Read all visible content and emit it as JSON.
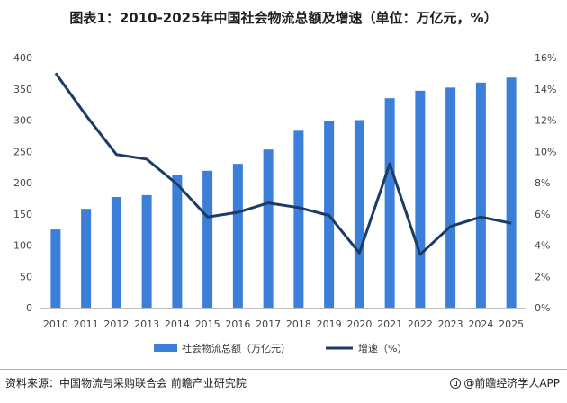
{
  "chart_data": {
    "type": "bar",
    "title": "图表1：2010-2025年中国社会物流总额及增速（单位：万亿元，%）",
    "categories": [
      "2010",
      "2011",
      "2012",
      "2013",
      "2014",
      "2015",
      "2016",
      "2017",
      "2018",
      "2019",
      "2020",
      "2021",
      "2022",
      "2023",
      "2024",
      "2025"
    ],
    "series": [
      {
        "name": "社会物流总额（万亿元）",
        "kind": "bar",
        "axis": "left",
        "color": "#3b7fd9",
        "values": [
          125,
          158,
          177,
          180,
          213,
          219,
          230,
          253,
          283,
          298,
          300,
          335,
          347,
          352,
          360,
          368
        ]
      },
      {
        "name": "增速（%）",
        "kind": "line",
        "axis": "right",
        "color": "#1d3b67",
        "values": [
          15.0,
          12.3,
          9.8,
          9.5,
          7.9,
          5.8,
          6.1,
          6.7,
          6.4,
          5.9,
          3.5,
          9.2,
          3.4,
          5.2,
          5.8,
          5.4
        ]
      }
    ],
    "y_left": {
      "min": 0,
      "max": 400,
      "ticks": [
        0,
        50,
        100,
        150,
        200,
        250,
        300,
        350,
        400
      ]
    },
    "y_right": {
      "min": 0,
      "max": 16,
      "ticks": [
        "0%",
        "2%",
        "4%",
        "6%",
        "8%",
        "10%",
        "12%",
        "14%",
        "16%"
      ]
    },
    "grid": false,
    "legend_position": "bottom"
  },
  "footer": {
    "source": "资料来源：中国物流与采购联合会 前瞻产业研究院",
    "brand": "@前瞻经济学人APP"
  }
}
